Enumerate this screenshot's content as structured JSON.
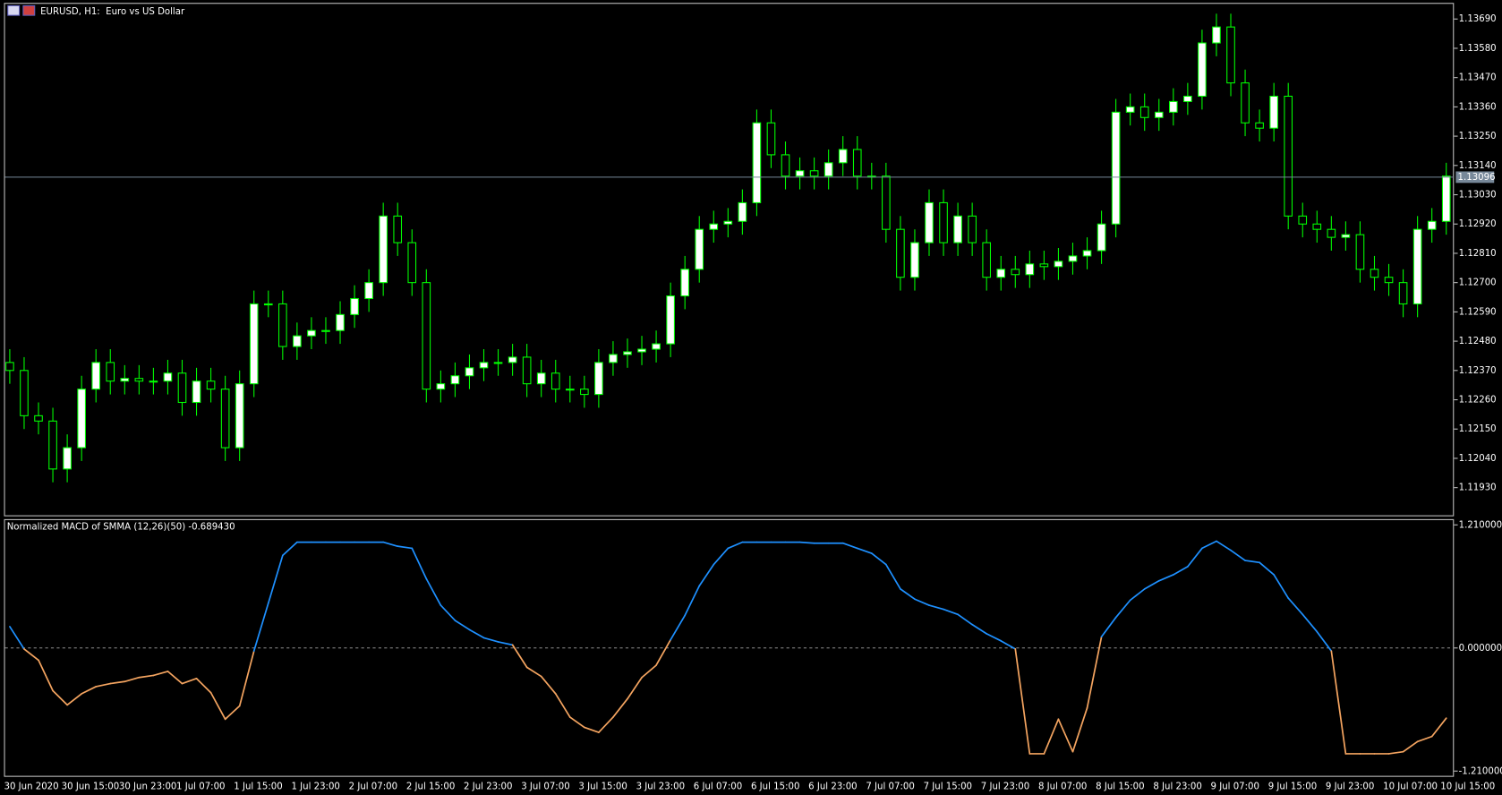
{
  "chart_data": [
    {
      "type": "candlestick",
      "title": "EURUSD, H1:  Euro vs US Dollar",
      "categories": [
        "30 Jun 2020",
        null,
        null,
        null,
        "30 Jun 15:00",
        null,
        null,
        null,
        "30 Jun 23:00",
        null,
        null,
        null,
        "1 Jul 07:00",
        null,
        null,
        null,
        "1 Jul 15:00",
        null,
        null,
        null,
        "1 Jul 23:00",
        null,
        null,
        null,
        "2 Jul 07:00",
        null,
        null,
        null,
        "2 Jul 15:00",
        null,
        null,
        null,
        "2 Jul 23:00",
        null,
        null,
        null,
        "3 Jul 07:00",
        null,
        null,
        null,
        "3 Jul 15:00",
        null,
        null,
        null,
        "3 Jul 23:00",
        null,
        null,
        null,
        "6 Jul 07:00",
        null,
        null,
        null,
        "6 Jul 15:00",
        null,
        null,
        null,
        "6 Jul 23:00",
        null,
        null,
        null,
        "7 Jul 07:00",
        null,
        null,
        null,
        "7 Jul 15:00",
        null,
        null,
        null,
        "7 Jul 23:00",
        null,
        null,
        null,
        "8 Jul 07:00",
        null,
        null,
        null,
        "8 Jul 15:00",
        null,
        null,
        null,
        "8 Jul 23:00",
        null,
        null,
        null,
        "9 Jul 07:00",
        null,
        null,
        null,
        "9 Jul 15:00",
        null,
        null,
        null,
        "9 Jul 23:00",
        null,
        null,
        null,
        "10 Jul 07:00",
        null,
        null,
        null,
        "10 Jul 15:00"
      ],
      "open": [
        1.124,
        1.1237,
        1.122,
        1.1218,
        1.12,
        1.1208,
        1.123,
        1.124,
        1.1233,
        1.1234,
        1.1233,
        1.1233,
        1.1236,
        1.1225,
        1.1233,
        1.123,
        1.1208,
        1.1232,
        1.1262,
        1.1262,
        1.1246,
        1.125,
        1.1252,
        1.1252,
        1.1258,
        1.1264,
        1.127,
        1.1295,
        1.1285,
        1.127,
        1.123,
        1.1232,
        1.1235,
        1.1238,
        1.124,
        1.124,
        1.1242,
        1.1232,
        1.1236,
        1.123,
        1.123,
        1.1228,
        1.124,
        1.1243,
        1.1244,
        1.1245,
        1.1247,
        1.1265,
        1.1275,
        1.129,
        1.1292,
        1.1293,
        1.13,
        1.133,
        1.1318,
        1.131,
        1.1312,
        1.131,
        1.1315,
        1.132,
        1.131,
        1.131,
        1.129,
        1.1272,
        1.1285,
        1.13,
        1.1285,
        1.1295,
        1.1285,
        1.1272,
        1.1275,
        1.1273,
        1.1277,
        1.1276,
        1.1278,
        1.128,
        1.1282,
        1.1292,
        1.1334,
        1.1336,
        1.1332,
        1.1334,
        1.1338,
        1.134,
        1.136,
        1.1366,
        1.1345,
        1.133,
        1.1328,
        1.134,
        1.1295,
        1.1292,
        1.129,
        1.1287,
        1.1288,
        1.1275,
        1.1272,
        1.127,
        1.1262,
        1.129,
        1.1293
      ],
      "high": [
        1.1245,
        1.1242,
        1.1225,
        1.1223,
        1.1213,
        1.1235,
        1.1245,
        1.1245,
        1.1239,
        1.1239,
        1.1238,
        1.1241,
        1.1241,
        1.1238,
        1.1238,
        1.1235,
        1.1237,
        1.1267,
        1.1267,
        1.1267,
        1.1255,
        1.1257,
        1.1257,
        1.1263,
        1.1269,
        1.1275,
        1.13,
        1.13,
        1.129,
        1.1275,
        1.1237,
        1.124,
        1.1243,
        1.1245,
        1.1245,
        1.1247,
        1.1247,
        1.1241,
        1.1241,
        1.1235,
        1.1235,
        1.1245,
        1.1248,
        1.1249,
        1.125,
        1.1252,
        1.127,
        1.128,
        1.1295,
        1.1297,
        1.1298,
        1.1305,
        1.1335,
        1.1335,
        1.1323,
        1.1317,
        1.1317,
        1.132,
        1.1325,
        1.1325,
        1.1315,
        1.1315,
        1.1295,
        1.129,
        1.1305,
        1.1305,
        1.13,
        1.13,
        1.129,
        1.128,
        1.128,
        1.1282,
        1.1282,
        1.1283,
        1.1285,
        1.1287,
        1.1297,
        1.1339,
        1.1341,
        1.1341,
        1.1339,
        1.1343,
        1.1345,
        1.1365,
        1.1371,
        1.1371,
        1.135,
        1.1335,
        1.1345,
        1.1345,
        1.13,
        1.1297,
        1.1295,
        1.1293,
        1.1293,
        1.128,
        1.1277,
        1.1275,
        1.1295,
        1.1298,
        1.1315
      ],
      "low": [
        1.1232,
        1.1215,
        1.1213,
        1.1195,
        1.1195,
        1.1203,
        1.1225,
        1.1228,
        1.1228,
        1.1228,
        1.1228,
        1.1228,
        1.122,
        1.122,
        1.1225,
        1.1203,
        1.1203,
        1.1227,
        1.1257,
        1.1241,
        1.1241,
        1.1245,
        1.1247,
        1.1247,
        1.1253,
        1.1259,
        1.1265,
        1.128,
        1.1265,
        1.1225,
        1.1225,
        1.1227,
        1.123,
        1.1233,
        1.1235,
        1.1235,
        1.1227,
        1.1227,
        1.1225,
        1.1225,
        1.1223,
        1.1223,
        1.1235,
        1.1238,
        1.1239,
        1.124,
        1.1242,
        1.126,
        1.127,
        1.1285,
        1.1287,
        1.1288,
        1.1295,
        1.1313,
        1.1305,
        1.1305,
        1.1305,
        1.1305,
        1.131,
        1.1305,
        1.1305,
        1.1285,
        1.1267,
        1.1267,
        1.128,
        1.128,
        1.128,
        1.128,
        1.1267,
        1.1267,
        1.1268,
        1.1268,
        1.1271,
        1.1271,
        1.1273,
        1.1275,
        1.1277,
        1.1287,
        1.1329,
        1.1327,
        1.1327,
        1.1329,
        1.1333,
        1.1335,
        1.1355,
        1.134,
        1.1325,
        1.1323,
        1.1323,
        1.129,
        1.1287,
        1.1285,
        1.1282,
        1.1282,
        1.127,
        1.1267,
        1.1265,
        1.1257,
        1.1257,
        1.1285,
        1.1288
      ],
      "close": [
        1.1237,
        1.122,
        1.1218,
        1.12,
        1.1208,
        1.123,
        1.124,
        1.1233,
        1.1234,
        1.1233,
        1.1233,
        1.1236,
        1.1225,
        1.1233,
        1.123,
        1.1208,
        1.1232,
        1.1262,
        1.1262,
        1.1246,
        1.125,
        1.1252,
        1.1252,
        1.1258,
        1.1264,
        1.127,
        1.1295,
        1.1285,
        1.127,
        1.123,
        1.1232,
        1.1235,
        1.1238,
        1.124,
        1.124,
        1.1242,
        1.1232,
        1.1236,
        1.123,
        1.123,
        1.1228,
        1.124,
        1.1243,
        1.1244,
        1.1245,
        1.1247,
        1.1265,
        1.1275,
        1.129,
        1.1292,
        1.1293,
        1.13,
        1.133,
        1.1318,
        1.131,
        1.1312,
        1.131,
        1.1315,
        1.132,
        1.131,
        1.131,
        1.129,
        1.1272,
        1.1285,
        1.13,
        1.1285,
        1.1295,
        1.1285,
        1.1272,
        1.1275,
        1.1273,
        1.1277,
        1.1276,
        1.1278,
        1.128,
        1.1282,
        1.1292,
        1.1334,
        1.1336,
        1.1332,
        1.1334,
        1.1338,
        1.134,
        1.136,
        1.1366,
        1.1345,
        1.133,
        1.1328,
        1.134,
        1.1295,
        1.1292,
        1.129,
        1.1287,
        1.1288,
        1.1275,
        1.1272,
        1.127,
        1.1262,
        1.129,
        1.1293,
        1.131
      ],
      "ylim": [
        1.11826,
        1.13747
      ],
      "yticks": [
        {
          "value": 1.1369,
          "label": "1.13690"
        },
        {
          "value": 1.1358,
          "label": "1.13580"
        },
        {
          "value": 1.1347,
          "label": "1.13470"
        },
        {
          "value": 1.1336,
          "label": "1.13360"
        },
        {
          "value": 1.1325,
          "label": "1.13250"
        },
        {
          "value": 1.1314,
          "label": "1.13140"
        },
        {
          "value": 1.1303,
          "label": "1.13030"
        },
        {
          "value": 1.1292,
          "label": "1.12920"
        },
        {
          "value": 1.1281,
          "label": "1.12810"
        },
        {
          "value": 1.127,
          "label": "1.12700"
        },
        {
          "value": 1.1259,
          "label": "1.12590"
        },
        {
          "value": 1.1248,
          "label": "1.12480"
        },
        {
          "value": 1.1237,
          "label": "1.12370"
        },
        {
          "value": 1.1226,
          "label": "1.12260"
        },
        {
          "value": 1.1215,
          "label": "1.12150"
        },
        {
          "value": 1.1204,
          "label": "1.12040"
        },
        {
          "value": 1.1193,
          "label": "1.11930"
        }
      ],
      "current_price": 1.13096,
      "bull_color": "#ffffff",
      "bear_color": "#000000",
      "wick_color": "#00ff00",
      "price_line_color": "#778899"
    },
    {
      "type": "line",
      "title": "Normalized MACD of SMMA (12,26)(50) -0.689430",
      "values": [
        0.21,
        -0.01,
        -0.12,
        -0.42,
        -0.56,
        -0.45,
        -0.38,
        -0.35,
        -0.33,
        -0.29,
        -0.27,
        -0.23,
        -0.35,
        -0.3,
        -0.44,
        -0.7,
        -0.57,
        -0.03,
        0.44,
        0.91,
        1.04,
        1.04,
        1.04,
        1.04,
        1.04,
        1.04,
        1.04,
        1.0,
        0.98,
        0.68,
        0.42,
        0.27,
        0.18,
        0.1,
        0.06,
        0.03,
        -0.19,
        -0.28,
        -0.45,
        -0.68,
        -0.78,
        -0.83,
        -0.68,
        -0.5,
        -0.29,
        -0.17,
        0.08,
        0.32,
        0.61,
        0.82,
        0.98,
        1.04,
        1.04,
        1.04,
        1.04,
        1.04,
        1.03,
        1.03,
        1.03,
        0.98,
        0.93,
        0.82,
        0.58,
        0.48,
        0.42,
        0.38,
        0.33,
        0.23,
        0.14,
        0.07,
        -0.01,
        -1.04,
        -1.04,
        -0.7,
        -1.02,
        -0.59,
        0.11,
        0.3,
        0.47,
        0.58,
        0.66,
        0.72,
        0.8,
        0.98,
        1.05,
        0.96,
        0.86,
        0.84,
        0.72,
        0.49,
        0.33,
        0.16,
        -0.03,
        -1.04,
        -1.04,
        -1.04,
        -1.04,
        -1.02,
        -0.92,
        -0.87,
        -0.69
      ],
      "ylim": [
        -1.257,
        1.257
      ],
      "yticks": [
        {
          "value": 1.21,
          "label": "1.210000"
        },
        {
          "value": 0,
          "label": "0.000000"
        },
        {
          "value": -1.21,
          "label": "-1.210000"
        }
      ],
      "zero_line": true,
      "color_up": "#1e90ff",
      "color_down": "#f4a460"
    }
  ]
}
